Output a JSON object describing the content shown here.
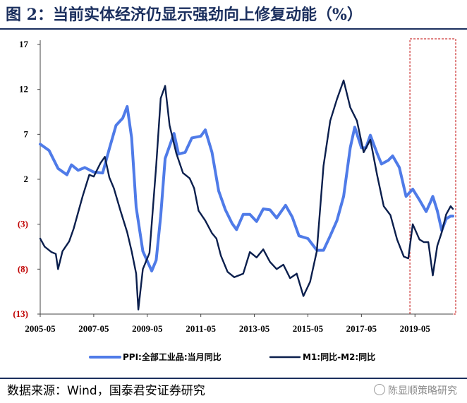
{
  "title": "图 2：当前实体经济仍显示强劲向上修复动能（%）",
  "source": "数据来源：Wind，国泰君安证券研究",
  "watermark": "陈显顺策略研究",
  "chart_data": {
    "type": "line",
    "x_range": [
      "2005-05",
      "2020-10"
    ],
    "x_ticks": [
      "2005-05",
      "2007-05",
      "2009-05",
      "2011-05",
      "2013-05",
      "2015-05",
      "2017-05",
      "2019-05"
    ],
    "y_ticks": [
      17,
      12,
      7,
      2,
      -3,
      -8,
      -13
    ],
    "y_tick_labels": [
      "17",
      "12",
      "7",
      "2",
      "(3)",
      "(8)",
      "(13)"
    ],
    "ylim": [
      -13,
      17
    ],
    "grid": false,
    "legend_position": "bottom",
    "highlight": {
      "x_from": "2019-04",
      "x_to": "2020-10",
      "color": "#c00000",
      "style": "dashed"
    },
    "series": [
      {
        "name": "PPI:全部工业品:当月同比",
        "color": "#4f7be8",
        "points": [
          [
            "2005-05",
            5.9
          ],
          [
            "2005-09",
            5.2
          ],
          [
            "2006-01",
            3.2
          ],
          [
            "2006-05",
            2.5
          ],
          [
            "2006-07",
            3.6
          ],
          [
            "2006-10",
            3.0
          ],
          [
            "2007-01",
            3.3
          ],
          [
            "2007-05",
            2.8
          ],
          [
            "2007-09",
            2.7
          ],
          [
            "2007-12",
            5.4
          ],
          [
            "2008-03",
            8.0
          ],
          [
            "2008-06",
            8.8
          ],
          [
            "2008-08",
            10.1
          ],
          [
            "2008-10",
            6.6
          ],
          [
            "2008-12",
            -1.1
          ],
          [
            "2009-03",
            -6.0
          ],
          [
            "2009-07",
            -8.2
          ],
          [
            "2009-09",
            -7.0
          ],
          [
            "2009-11",
            -2.1
          ],
          [
            "2010-01",
            4.3
          ],
          [
            "2010-05",
            7.1
          ],
          [
            "2010-07",
            4.8
          ],
          [
            "2010-10",
            5.0
          ],
          [
            "2011-01",
            6.6
          ],
          [
            "2011-05",
            6.8
          ],
          [
            "2011-07",
            7.5
          ],
          [
            "2011-10",
            5.0
          ],
          [
            "2012-01",
            0.7
          ],
          [
            "2012-04",
            -1.4
          ],
          [
            "2012-07",
            -2.9
          ],
          [
            "2012-09",
            -3.6
          ],
          [
            "2012-12",
            -1.9
          ],
          [
            "2013-03",
            -1.9
          ],
          [
            "2013-06",
            -2.7
          ],
          [
            "2013-09",
            -1.3
          ],
          [
            "2013-12",
            -1.4
          ],
          [
            "2014-03",
            -2.3
          ],
          [
            "2014-07",
            -0.9
          ],
          [
            "2014-10",
            -2.2
          ],
          [
            "2015-01",
            -4.3
          ],
          [
            "2015-05",
            -4.6
          ],
          [
            "2015-09",
            -5.9
          ],
          [
            "2015-12",
            -5.9
          ],
          [
            "2016-03",
            -4.3
          ],
          [
            "2016-06",
            -2.6
          ],
          [
            "2016-09",
            0.1
          ],
          [
            "2016-12",
            5.5
          ],
          [
            "2017-02",
            7.8
          ],
          [
            "2017-05",
            5.5
          ],
          [
            "2017-07",
            5.5
          ],
          [
            "2017-09",
            6.9
          ],
          [
            "2017-12",
            4.9
          ],
          [
            "2018-02",
            3.7
          ],
          [
            "2018-05",
            4.1
          ],
          [
            "2018-07",
            4.6
          ],
          [
            "2018-10",
            3.3
          ],
          [
            "2019-01",
            0.1
          ],
          [
            "2019-04",
            0.9
          ],
          [
            "2019-07",
            -0.3
          ],
          [
            "2019-10",
            -1.6
          ],
          [
            "2019-12",
            -0.5
          ],
          [
            "2020-01",
            0.1
          ],
          [
            "2020-03",
            -1.5
          ],
          [
            "2020-05",
            -3.7
          ],
          [
            "2020-07",
            -2.4
          ],
          [
            "2020-09",
            -2.1
          ],
          [
            "2020-10",
            -2.1
          ]
        ]
      },
      {
        "name": "M1:同比-M2:同比",
        "color": "#0b1f4d",
        "points": [
          [
            "2005-05",
            -4.6
          ],
          [
            "2005-07",
            -5.5
          ],
          [
            "2005-10",
            -6.1
          ],
          [
            "2005-12",
            -6.3
          ],
          [
            "2006-01",
            -8.0
          ],
          [
            "2006-03",
            -6.0
          ],
          [
            "2006-06",
            -4.9
          ],
          [
            "2006-08",
            -3.5
          ],
          [
            "2006-12",
            0.1
          ],
          [
            "2007-03",
            2.5
          ],
          [
            "2007-05",
            2.3
          ],
          [
            "2007-08",
            3.8
          ],
          [
            "2007-10",
            4.5
          ],
          [
            "2007-12",
            2.2
          ],
          [
            "2008-02",
            1.0
          ],
          [
            "2008-05",
            -1.5
          ],
          [
            "2008-08",
            -3.9
          ],
          [
            "2008-10",
            -6.0
          ],
          [
            "2008-12",
            -8.5
          ],
          [
            "2009-01",
            -12.5
          ],
          [
            "2009-03",
            -8.0
          ],
          [
            "2009-06",
            -6.2
          ],
          [
            "2009-09",
            3.5
          ],
          [
            "2009-11",
            11.0
          ],
          [
            "2010-01",
            12.4
          ],
          [
            "2010-03",
            8.0
          ],
          [
            "2010-06",
            4.9
          ],
          [
            "2010-09",
            2.7
          ],
          [
            "2010-12",
            2.1
          ],
          [
            "2011-02",
            1.0
          ],
          [
            "2011-04",
            -1.5
          ],
          [
            "2011-07",
            -2.6
          ],
          [
            "2011-10",
            -4.0
          ],
          [
            "2011-12",
            -4.6
          ],
          [
            "2012-02",
            -6.5
          ],
          [
            "2012-05",
            -8.3
          ],
          [
            "2012-08",
            -8.9
          ],
          [
            "2012-12",
            -8.5
          ],
          [
            "2013-03",
            -6.1
          ],
          [
            "2013-06",
            -6.7
          ],
          [
            "2013-09",
            -5.8
          ],
          [
            "2013-12",
            -7.2
          ],
          [
            "2014-03",
            -8.0
          ],
          [
            "2014-06",
            -7.5
          ],
          [
            "2014-09",
            -9.0
          ],
          [
            "2014-12",
            -8.5
          ],
          [
            "2015-03",
            -11.0
          ],
          [
            "2015-06",
            -9.4
          ],
          [
            "2015-09",
            -6.0
          ],
          [
            "2015-12",
            3.5
          ],
          [
            "2016-03",
            8.5
          ],
          [
            "2016-06",
            10.9
          ],
          [
            "2016-09",
            13.0
          ],
          [
            "2016-12",
            10.0
          ],
          [
            "2017-03",
            8.5
          ],
          [
            "2017-06",
            5.0
          ],
          [
            "2017-09",
            6.4
          ],
          [
            "2017-12",
            2.5
          ],
          [
            "2018-03",
            -1.0
          ],
          [
            "2018-06",
            -2.0
          ],
          [
            "2018-09",
            -4.7
          ],
          [
            "2018-12",
            -6.6
          ],
          [
            "2019-02",
            -6.8
          ],
          [
            "2019-04",
            -3.0
          ],
          [
            "2019-07",
            -4.7
          ],
          [
            "2019-09",
            -5.0
          ],
          [
            "2019-11",
            -5.0
          ],
          [
            "2020-01",
            -8.7
          ],
          [
            "2020-03",
            -5.4
          ],
          [
            "2020-05",
            -3.9
          ],
          [
            "2020-07",
            -1.9
          ],
          [
            "2020-09",
            -1.0
          ],
          [
            "2020-10",
            -1.3
          ]
        ]
      }
    ]
  }
}
